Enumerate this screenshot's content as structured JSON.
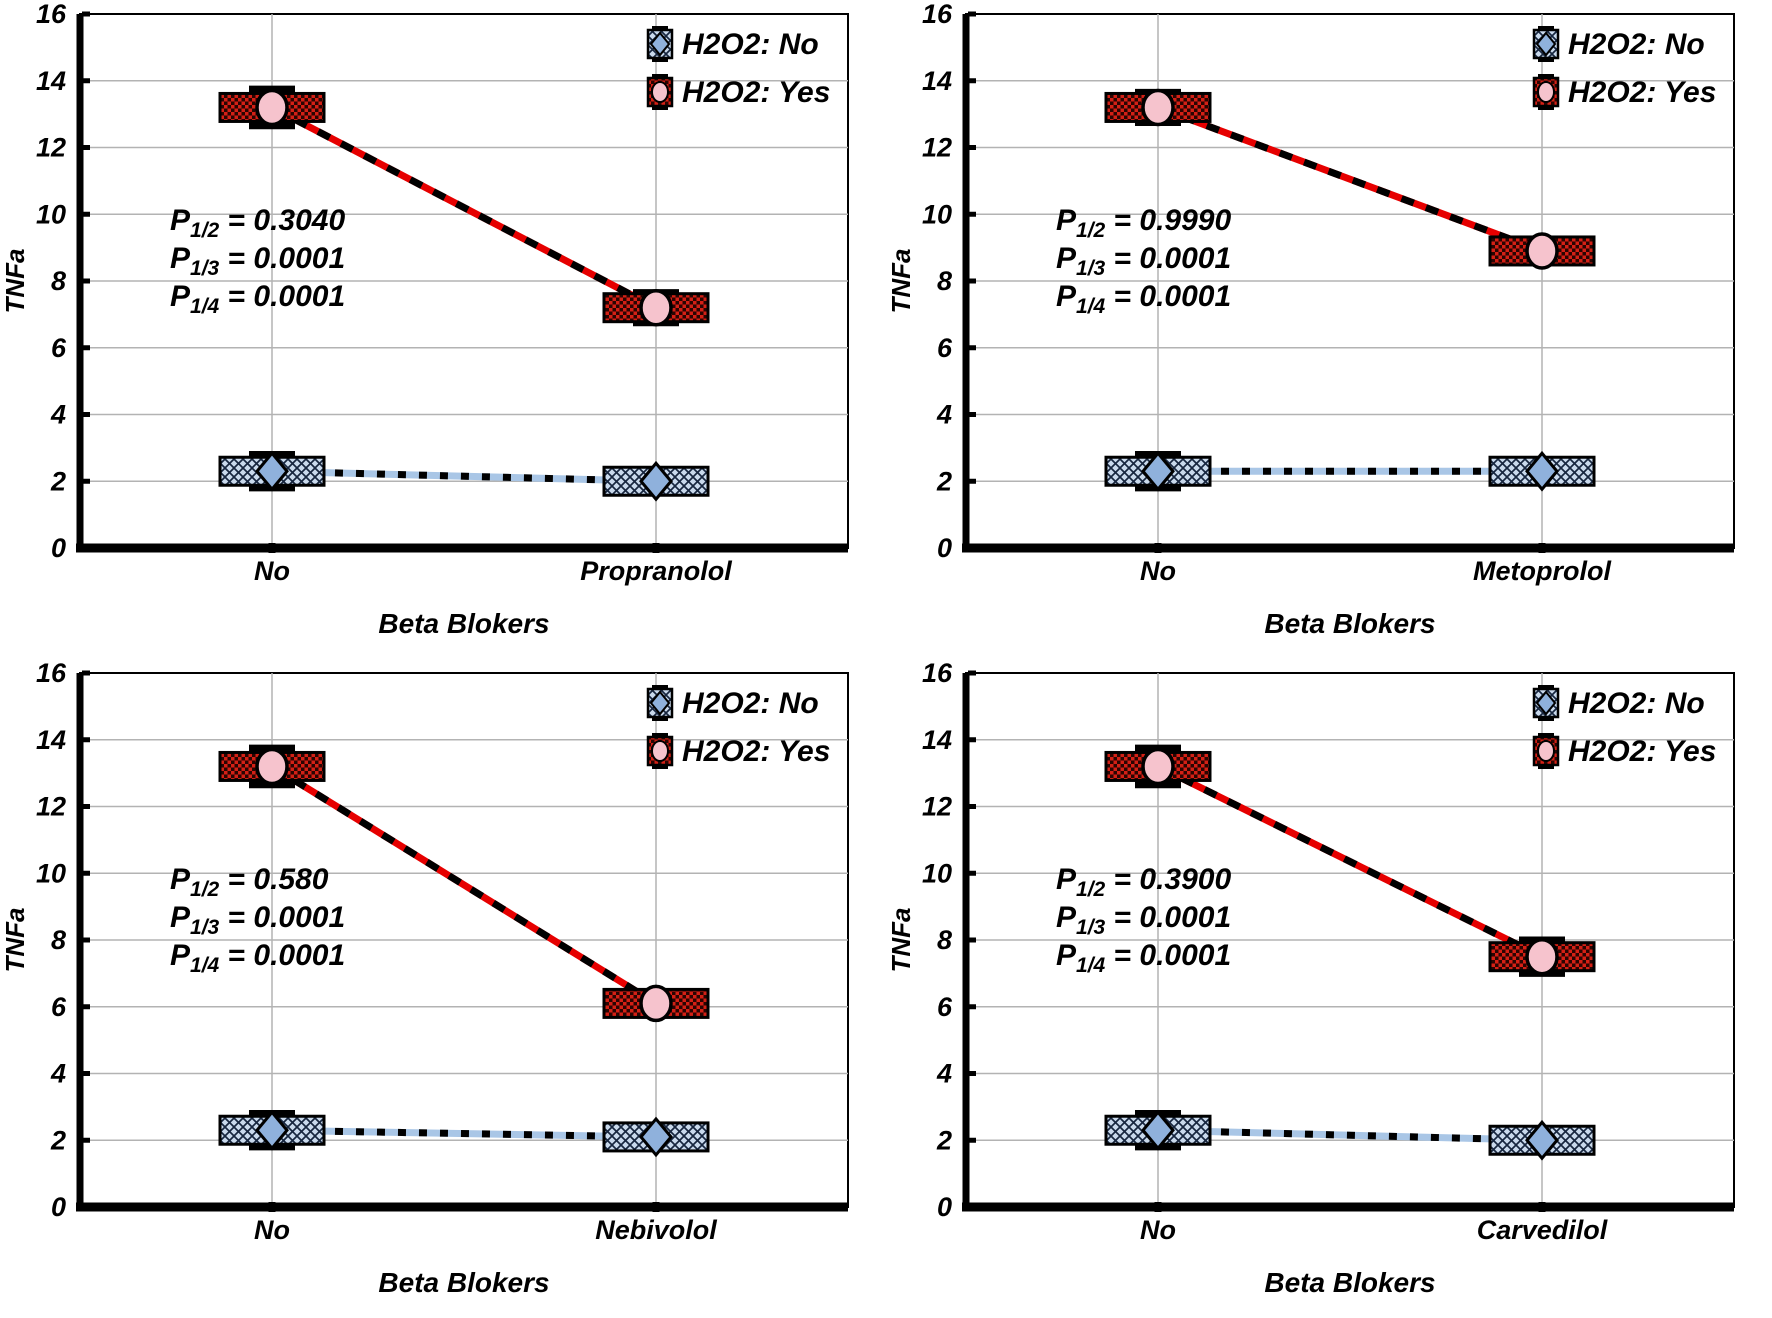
{
  "figure": {
    "background": "#ffffff",
    "description": "2x2 grid of interaction plots of TNFa vs Beta Blokers under H2O2 No/Yes"
  },
  "palette": {
    "grid_line": "#b3b3b3",
    "axis": "#000000",
    "red_line": "#e60000",
    "red_pattern_dark": "#2a0502",
    "red_pattern_light": "#d42015",
    "pink_marker": "#f6c3cd",
    "blue_line": "#a9c6e6",
    "blue_pattern_bg": "#c9d9ec",
    "blue_pattern_hatch": "#17263f",
    "blue_marker": "#8fb1dc",
    "text": "#000000"
  },
  "legend": {
    "no_label": "H2O2: No",
    "yes_label": "H2O2: Yes",
    "position": "top-right"
  },
  "chart_data": [
    {
      "type": "line",
      "panel": "top-left",
      "xlabel": "Beta Blokers",
      "ylabel": "TNFa",
      "ylim": [
        0,
        16
      ],
      "y_ticks": [
        0,
        2,
        4,
        6,
        8,
        10,
        12,
        14,
        16
      ],
      "grid": true,
      "categories": [
        "No",
        "Propranolol"
      ],
      "series": [
        {
          "name": "H2O2: No",
          "marker": "diamond",
          "values": [
            2.3,
            2.0
          ],
          "errors": [
            0.5,
            0.25
          ]
        },
        {
          "name": "H2O2: Yes",
          "marker": "circle",
          "values": [
            13.2,
            7.2
          ],
          "errors": [
            0.55,
            0.45
          ]
        }
      ],
      "annotations": [
        {
          "label": "P",
          "sub": "1/2",
          "value": "0.3040"
        },
        {
          "label": "P",
          "sub": "1/3",
          "value": "0.0001"
        },
        {
          "label": "P",
          "sub": "1/4",
          "value": "0.0001"
        }
      ]
    },
    {
      "type": "line",
      "panel": "top-right",
      "xlabel": "Beta Blokers",
      "ylabel": "TNFa",
      "ylim": [
        0,
        16
      ],
      "y_ticks": [
        0,
        2,
        4,
        6,
        8,
        10,
        12,
        14,
        16
      ],
      "grid": true,
      "categories": [
        "No",
        "Metoprolol"
      ],
      "series": [
        {
          "name": "H2O2: No",
          "marker": "diamond",
          "values": [
            2.3,
            2.3
          ],
          "errors": [
            0.5,
            0.35
          ]
        },
        {
          "name": "H2O2: Yes",
          "marker": "circle",
          "values": [
            13.2,
            8.9
          ],
          "errors": [
            0.45,
            0.35
          ]
        }
      ],
      "annotations": [
        {
          "label": "P",
          "sub": "1/2",
          "value": "0.9990"
        },
        {
          "label": "P",
          "sub": "1/3",
          "value": "0.0001"
        },
        {
          "label": "P",
          "sub": "1/4",
          "value": "0.0001"
        }
      ]
    },
    {
      "type": "line",
      "panel": "bottom-left",
      "xlabel": "Beta Blokers",
      "ylabel": "TNFa",
      "ylim": [
        0,
        16
      ],
      "y_ticks": [
        0,
        2,
        4,
        6,
        8,
        10,
        12,
        14,
        16
      ],
      "grid": true,
      "categories": [
        "No",
        "Nebivolol"
      ],
      "series": [
        {
          "name": "H2O2: No",
          "marker": "diamond",
          "values": [
            2.3,
            2.1
          ],
          "errors": [
            0.5,
            0.3
          ]
        },
        {
          "name": "H2O2: Yes",
          "marker": "circle",
          "values": [
            13.2,
            6.1
          ],
          "errors": [
            0.55,
            0.35
          ]
        }
      ],
      "annotations": [
        {
          "label": "P",
          "sub": "1/2",
          "value": "0.580"
        },
        {
          "label": "P",
          "sub": "1/3",
          "value": "0.0001"
        },
        {
          "label": "P",
          "sub": "1/4",
          "value": "0.0001"
        }
      ]
    },
    {
      "type": "line",
      "panel": "bottom-right",
      "xlabel": "Beta Blokers",
      "ylabel": "TNFa",
      "ylim": [
        0,
        16
      ],
      "y_ticks": [
        0,
        2,
        4,
        6,
        8,
        10,
        12,
        14,
        16
      ],
      "grid": true,
      "categories": [
        "No",
        "Carvedilol"
      ],
      "series": [
        {
          "name": "H2O2: No",
          "marker": "diamond",
          "values": [
            2.3,
            2.0
          ],
          "errors": [
            0.5,
            0.3
          ]
        },
        {
          "name": "H2O2: Yes",
          "marker": "circle",
          "values": [
            13.2,
            7.5
          ],
          "errors": [
            0.55,
            0.5
          ]
        }
      ],
      "annotations": [
        {
          "label": "P",
          "sub": "1/2",
          "value": "0.3900"
        },
        {
          "label": "P",
          "sub": "1/3",
          "value": "0.0001"
        },
        {
          "label": "P",
          "sub": "1/4",
          "value": "0.0001"
        }
      ]
    }
  ]
}
